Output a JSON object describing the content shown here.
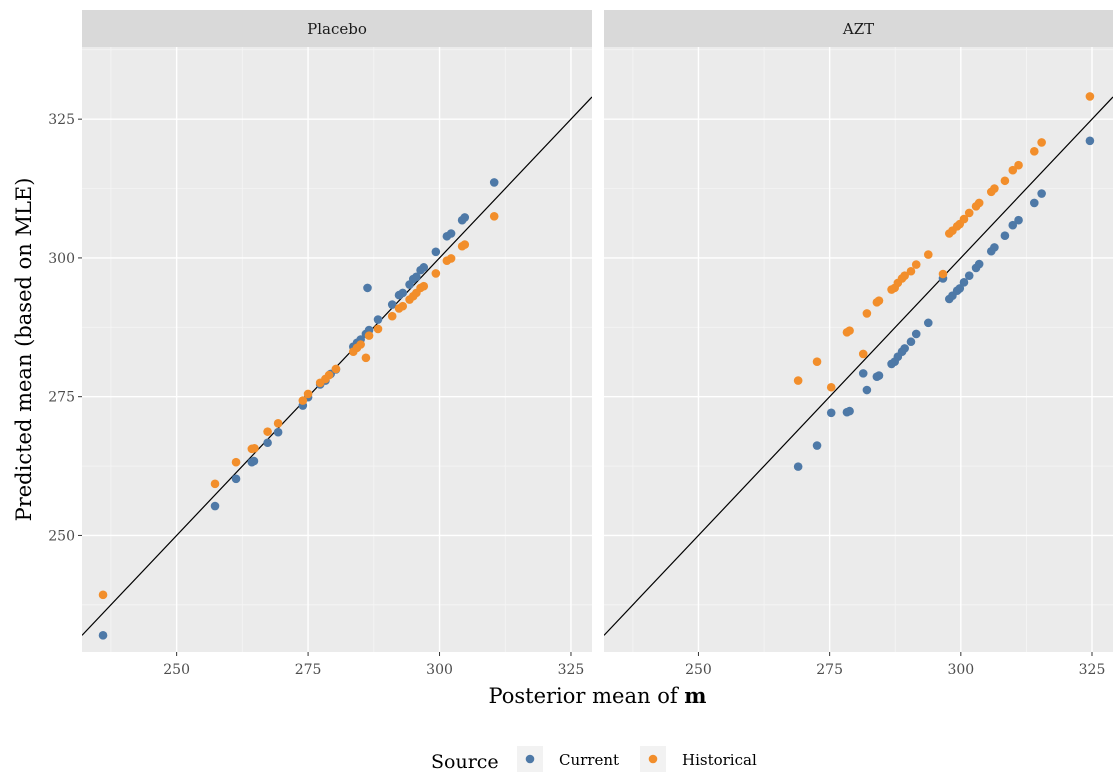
{
  "chart_data": {
    "type": "scatter",
    "facet_by": "panels",
    "xlabel": "Posterior mean of",
    "xlabel_bold": "m",
    "ylabel": "Predicted mean (based on MLE)",
    "xlim": [
      232,
      329
    ],
    "ylim": [
      229,
      338
    ],
    "x_ticks": [
      250,
      275,
      300,
      325
    ],
    "y_ticks": [
      250,
      275,
      300,
      325
    ],
    "reference_line": "y = x",
    "grid": true,
    "legend": {
      "title": "Source",
      "placement": "bottom",
      "entries": [
        {
          "label": "Current",
          "color": "#4e79a7"
        },
        {
          "label": "Historical",
          "color": "#f28e2b"
        }
      ]
    },
    "panels": [
      {
        "title": "Placebo",
        "series": [
          {
            "name": "Current",
            "color": "#4e79a7",
            "points": [
              [
                236,
                232
              ],
              [
                257.3,
                255.3
              ],
              [
                261.3,
                260.2
              ],
              [
                264.3,
                263.2
              ],
              [
                264.7,
                263.4
              ],
              [
                267.3,
                266.7
              ],
              [
                269.3,
                268.6
              ],
              [
                274.0,
                273.4
              ],
              [
                275.0,
                274.9
              ],
              [
                277.3,
                277.2
              ],
              [
                278.3,
                277.9
              ],
              [
                279.3,
                279.1
              ],
              [
                280.3,
                279.9
              ],
              [
                283.6,
                284.0
              ],
              [
                284.3,
                284.7
              ],
              [
                285.0,
                285.3
              ],
              [
                286.0,
                286.3
              ],
              [
                286.3,
                294.6
              ],
              [
                286.6,
                287.0
              ],
              [
                288.3,
                288.9
              ],
              [
                291.0,
                291.6
              ],
              [
                292.3,
                293.3
              ],
              [
                293.0,
                293.7
              ],
              [
                294.3,
                295.2
              ],
              [
                295.0,
                296.2
              ],
              [
                295.6,
                296.6
              ],
              [
                296.4,
                297.8
              ],
              [
                297.0,
                298.3
              ],
              [
                299.3,
                301.1
              ],
              [
                301.4,
                303.9
              ],
              [
                302.2,
                304.4
              ],
              [
                304.3,
                306.8
              ],
              [
                304.8,
                307.3
              ],
              [
                310.4,
                313.6
              ]
            ]
          },
          {
            "name": "Historical",
            "color": "#f28e2b",
            "points": [
              [
                236,
                239.3
              ],
              [
                257.3,
                259.3
              ],
              [
                261.3,
                263.2
              ],
              [
                264.3,
                265.6
              ],
              [
                264.8,
                265.7
              ],
              [
                267.3,
                268.7
              ],
              [
                269.3,
                270.2
              ],
              [
                274.0,
                274.3
              ],
              [
                275.0,
                275.5
              ],
              [
                277.3,
                277.5
              ],
              [
                278.3,
                278.2
              ],
              [
                279.0,
                278.9
              ],
              [
                280.3,
                280.0
              ],
              [
                283.6,
                283.1
              ],
              [
                284.3,
                283.8
              ],
              [
                285.0,
                284.4
              ],
              [
                286.0,
                282.0
              ],
              [
                286.6,
                286.0
              ],
              [
                288.3,
                287.2
              ],
              [
                291.0,
                289.5
              ],
              [
                292.3,
                290.9
              ],
              [
                293.0,
                291.3
              ],
              [
                294.3,
                292.5
              ],
              [
                295.0,
                293.1
              ],
              [
                295.6,
                293.7
              ],
              [
                296.4,
                294.6
              ],
              [
                297.0,
                294.9
              ],
              [
                299.3,
                297.2
              ],
              [
                301.4,
                299.5
              ],
              [
                302.2,
                299.9
              ],
              [
                304.3,
                302.1
              ],
              [
                304.8,
                302.4
              ],
              [
                310.4,
                307.5
              ]
            ]
          }
        ]
      },
      {
        "title": "AZT",
        "series": [
          {
            "name": "Current",
            "color": "#4e79a7",
            "points": [
              [
                269.0,
                262.4
              ],
              [
                272.6,
                266.2
              ],
              [
                275.3,
                272.1
              ],
              [
                278.3,
                272.2
              ],
              [
                278.8,
                272.4
              ],
              [
                281.4,
                279.2
              ],
              [
                282.1,
                276.2
              ],
              [
                284.0,
                278.6
              ],
              [
                284.4,
                278.8
              ],
              [
                286.8,
                280.9
              ],
              [
                287.4,
                281.3
              ],
              [
                288.0,
                282.2
              ],
              [
                288.8,
                283.1
              ],
              [
                289.3,
                283.7
              ],
              [
                290.5,
                284.9
              ],
              [
                291.5,
                286.3
              ],
              [
                293.8,
                288.3
              ],
              [
                296.6,
                296.3
              ],
              [
                297.8,
                292.6
              ],
              [
                298.4,
                293.2
              ],
              [
                299.3,
                294.1
              ],
              [
                299.8,
                294.5
              ],
              [
                300.6,
                295.6
              ],
              [
                301.6,
                296.8
              ],
              [
                302.9,
                298.2
              ],
              [
                303.5,
                298.9
              ],
              [
                305.8,
                301.2
              ],
              [
                306.4,
                301.9
              ],
              [
                308.4,
                304.0
              ],
              [
                309.9,
                305.9
              ],
              [
                311.0,
                306.8
              ],
              [
                314.0,
                309.9
              ],
              [
                315.4,
                311.6
              ],
              [
                324.6,
                321.1
              ]
            ]
          },
          {
            "name": "Historical",
            "color": "#f28e2b",
            "points": [
              [
                269.0,
                277.9
              ],
              [
                272.6,
                281.3
              ],
              [
                275.3,
                276.7
              ],
              [
                278.3,
                286.6
              ],
              [
                278.8,
                286.9
              ],
              [
                281.4,
                282.7
              ],
              [
                282.1,
                290.0
              ],
              [
                284.0,
                292.0
              ],
              [
                284.4,
                292.3
              ],
              [
                286.8,
                294.3
              ],
              [
                287.4,
                294.6
              ],
              [
                288.0,
                295.5
              ],
              [
                288.8,
                296.3
              ],
              [
                289.3,
                296.8
              ],
              [
                290.5,
                297.6
              ],
              [
                291.5,
                298.8
              ],
              [
                293.8,
                300.6
              ],
              [
                296.6,
                297.1
              ],
              [
                297.8,
                304.4
              ],
              [
                298.4,
                304.9
              ],
              [
                299.3,
                305.7
              ],
              [
                299.8,
                306.1
              ],
              [
                300.6,
                307.0
              ],
              [
                301.6,
                308.1
              ],
              [
                302.9,
                309.3
              ],
              [
                303.5,
                309.9
              ],
              [
                305.8,
                311.9
              ],
              [
                306.4,
                312.5
              ],
              [
                308.4,
                313.9
              ],
              [
                309.9,
                315.8
              ],
              [
                311.0,
                316.7
              ],
              [
                314.0,
                319.2
              ],
              [
                315.4,
                320.8
              ],
              [
                324.6,
                329.1
              ]
            ]
          }
        ]
      }
    ]
  }
}
